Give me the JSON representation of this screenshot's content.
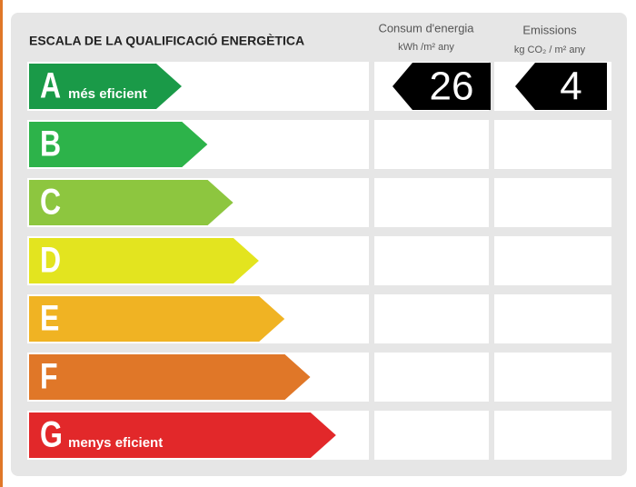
{
  "header": {
    "title": "ESCALA DE LA QUALIFICACIÓ ENERGÈTICA",
    "columns": [
      {
        "title": "Consum d'energia",
        "unit": "kWh /m² any"
      },
      {
        "title": "Emissions",
        "unit": "kg CO₂ / m² any"
      }
    ]
  },
  "rows": [
    {
      "letter": "A",
      "label": "més eficient",
      "color": "#1a9a48",
      "values": [
        26,
        4
      ]
    },
    {
      "letter": "B",
      "color": "#2db34a"
    },
    {
      "letter": "C",
      "color": "#8dc63f"
    },
    {
      "letter": "D",
      "color": "#e3e41f"
    },
    {
      "letter": "E",
      "color": "#f0b323"
    },
    {
      "letter": "F",
      "color": "#e07728"
    },
    {
      "letter": "G",
      "label": "menys eficient",
      "color": "#e2282a"
    }
  ]
}
